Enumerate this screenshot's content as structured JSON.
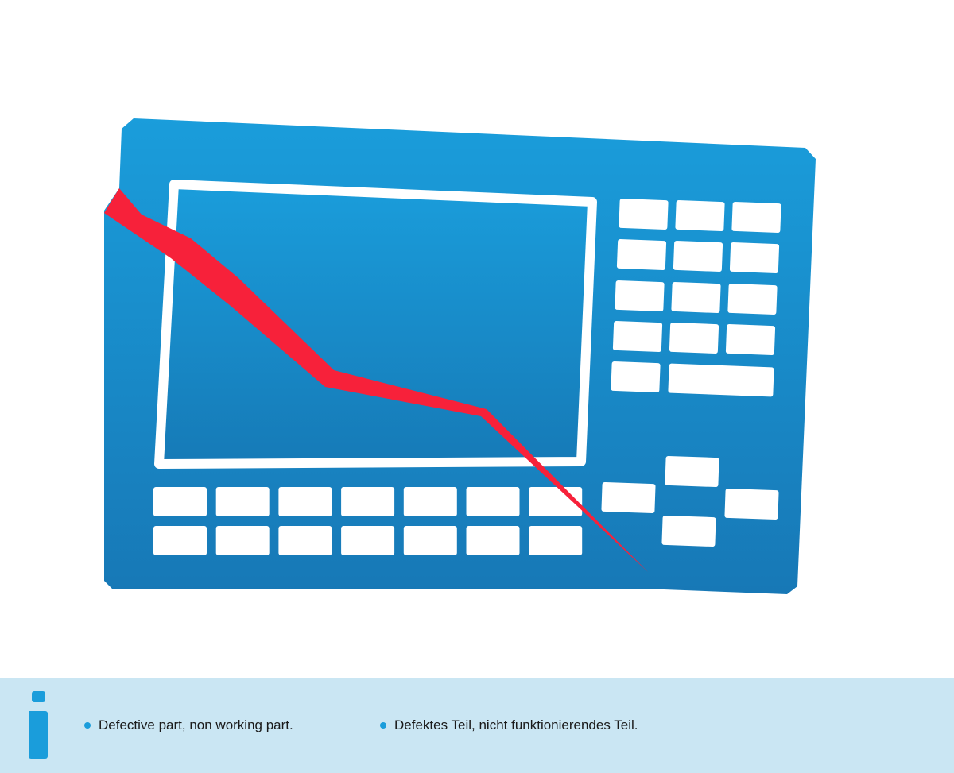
{
  "colors": {
    "panel": "#1a9ddb",
    "panel_dark": "#1778b6",
    "crack": "#f7213a",
    "info_bg": "#cae6f3",
    "accent": "#1a9ddb"
  },
  "illustration": {
    "subject": "control-panel-broken-icon"
  },
  "info": {
    "icon": "info-icon",
    "notes": [
      "Defective part, non working part.",
      "Defektes Teil, nicht funktionierendes Teil."
    ]
  }
}
